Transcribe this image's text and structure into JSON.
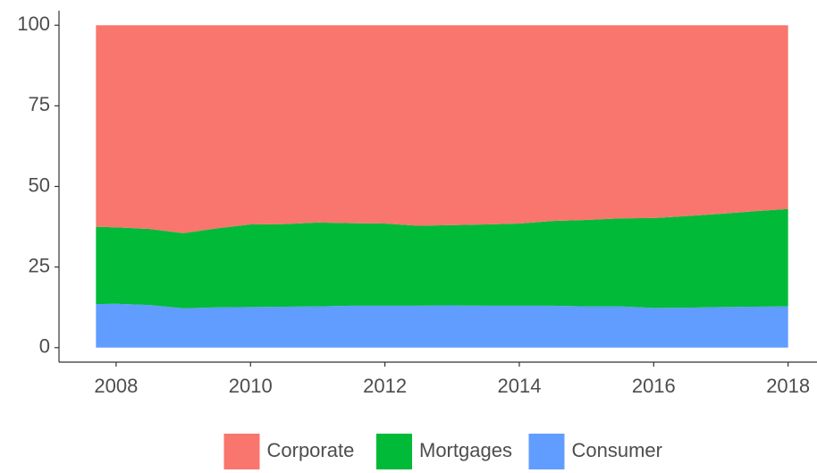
{
  "chart_data": {
    "type": "stacked-area",
    "x": [
      2007.7,
      2008,
      2008.5,
      2009,
      2009.5,
      2010,
      2010.5,
      2011,
      2011.5,
      2012,
      2012.5,
      2013,
      2013.5,
      2014,
      2014.5,
      2015,
      2015.5,
      2016,
      2016.5,
      2017,
      2017.5,
      2018
    ],
    "series": [
      {
        "name": "Corporate",
        "color": "#f8766d",
        "values": [
          62.5,
          62.7,
          63.2,
          64.5,
          63,
          61.8,
          61.7,
          61.2,
          61.4,
          61.5,
          62.2,
          62,
          61.8,
          61.5,
          60.7,
          60.4,
          59.9,
          59.8,
          59.2,
          58.5,
          57.7,
          57
        ]
      },
      {
        "name": "Mortgages",
        "color": "#00ba38",
        "values": [
          24,
          23.7,
          23.6,
          23.3,
          24.5,
          25.6,
          25.6,
          26,
          25.6,
          25.5,
          24.8,
          24.9,
          25.2,
          25.5,
          26.3,
          26.8,
          27.3,
          27.9,
          28.4,
          28.9,
          29.6,
          30.2
        ]
      },
      {
        "name": "Consumer",
        "color": "#619cff",
        "values": [
          13.5,
          13.6,
          13.2,
          12.2,
          12.5,
          12.6,
          12.7,
          12.8,
          13,
          13,
          13,
          13.1,
          13,
          13,
          13,
          12.8,
          12.8,
          12.3,
          12.4,
          12.6,
          12.7,
          12.8
        ]
      }
    ],
    "xlim": [
      2007.15,
      2018.43
    ],
    "xticks": [
      2008,
      2010,
      2012,
      2014,
      2016,
      2018
    ],
    "ylim": [
      -4.5,
      104.5
    ],
    "yticks": [
      0,
      25,
      50,
      75,
      100
    ],
    "legend": "bottom"
  }
}
